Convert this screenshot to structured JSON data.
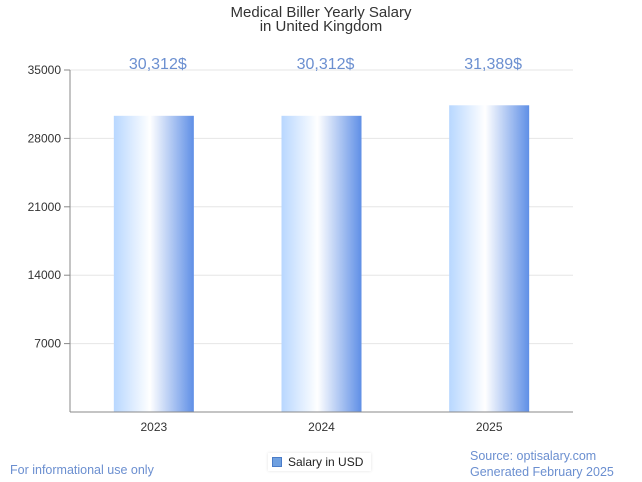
{
  "chart_data": {
    "type": "bar",
    "title": [
      "Medical Biller Yearly Salary",
      "in United Kingdom"
    ],
    "categories": [
      "2023",
      "2024",
      "2025"
    ],
    "series": [
      {
        "name": "Salary in USD",
        "values": [
          30312,
          30312,
          31389
        ],
        "labels": [
          "30,312$",
          "30,312$",
          "31,389$"
        ]
      }
    ],
    "xlabel": "",
    "ylabel": "",
    "ylim": [
      0,
      35000
    ],
    "yticks": [
      7000,
      14000,
      21000,
      28000,
      35000
    ],
    "grid": true,
    "legend": "bottom-center",
    "colors": {
      "bar_light": "#ffffff",
      "bar_mid": "#b8d7ff",
      "bar_dark": "#5f8fe6",
      "data_label": "#6b8fd0",
      "grid": "#e6e6e6",
      "axis": "#888888"
    }
  },
  "footer": {
    "left": "For informational use only",
    "source": "Source: optisalary.com",
    "generated": "Generated February 2025"
  }
}
